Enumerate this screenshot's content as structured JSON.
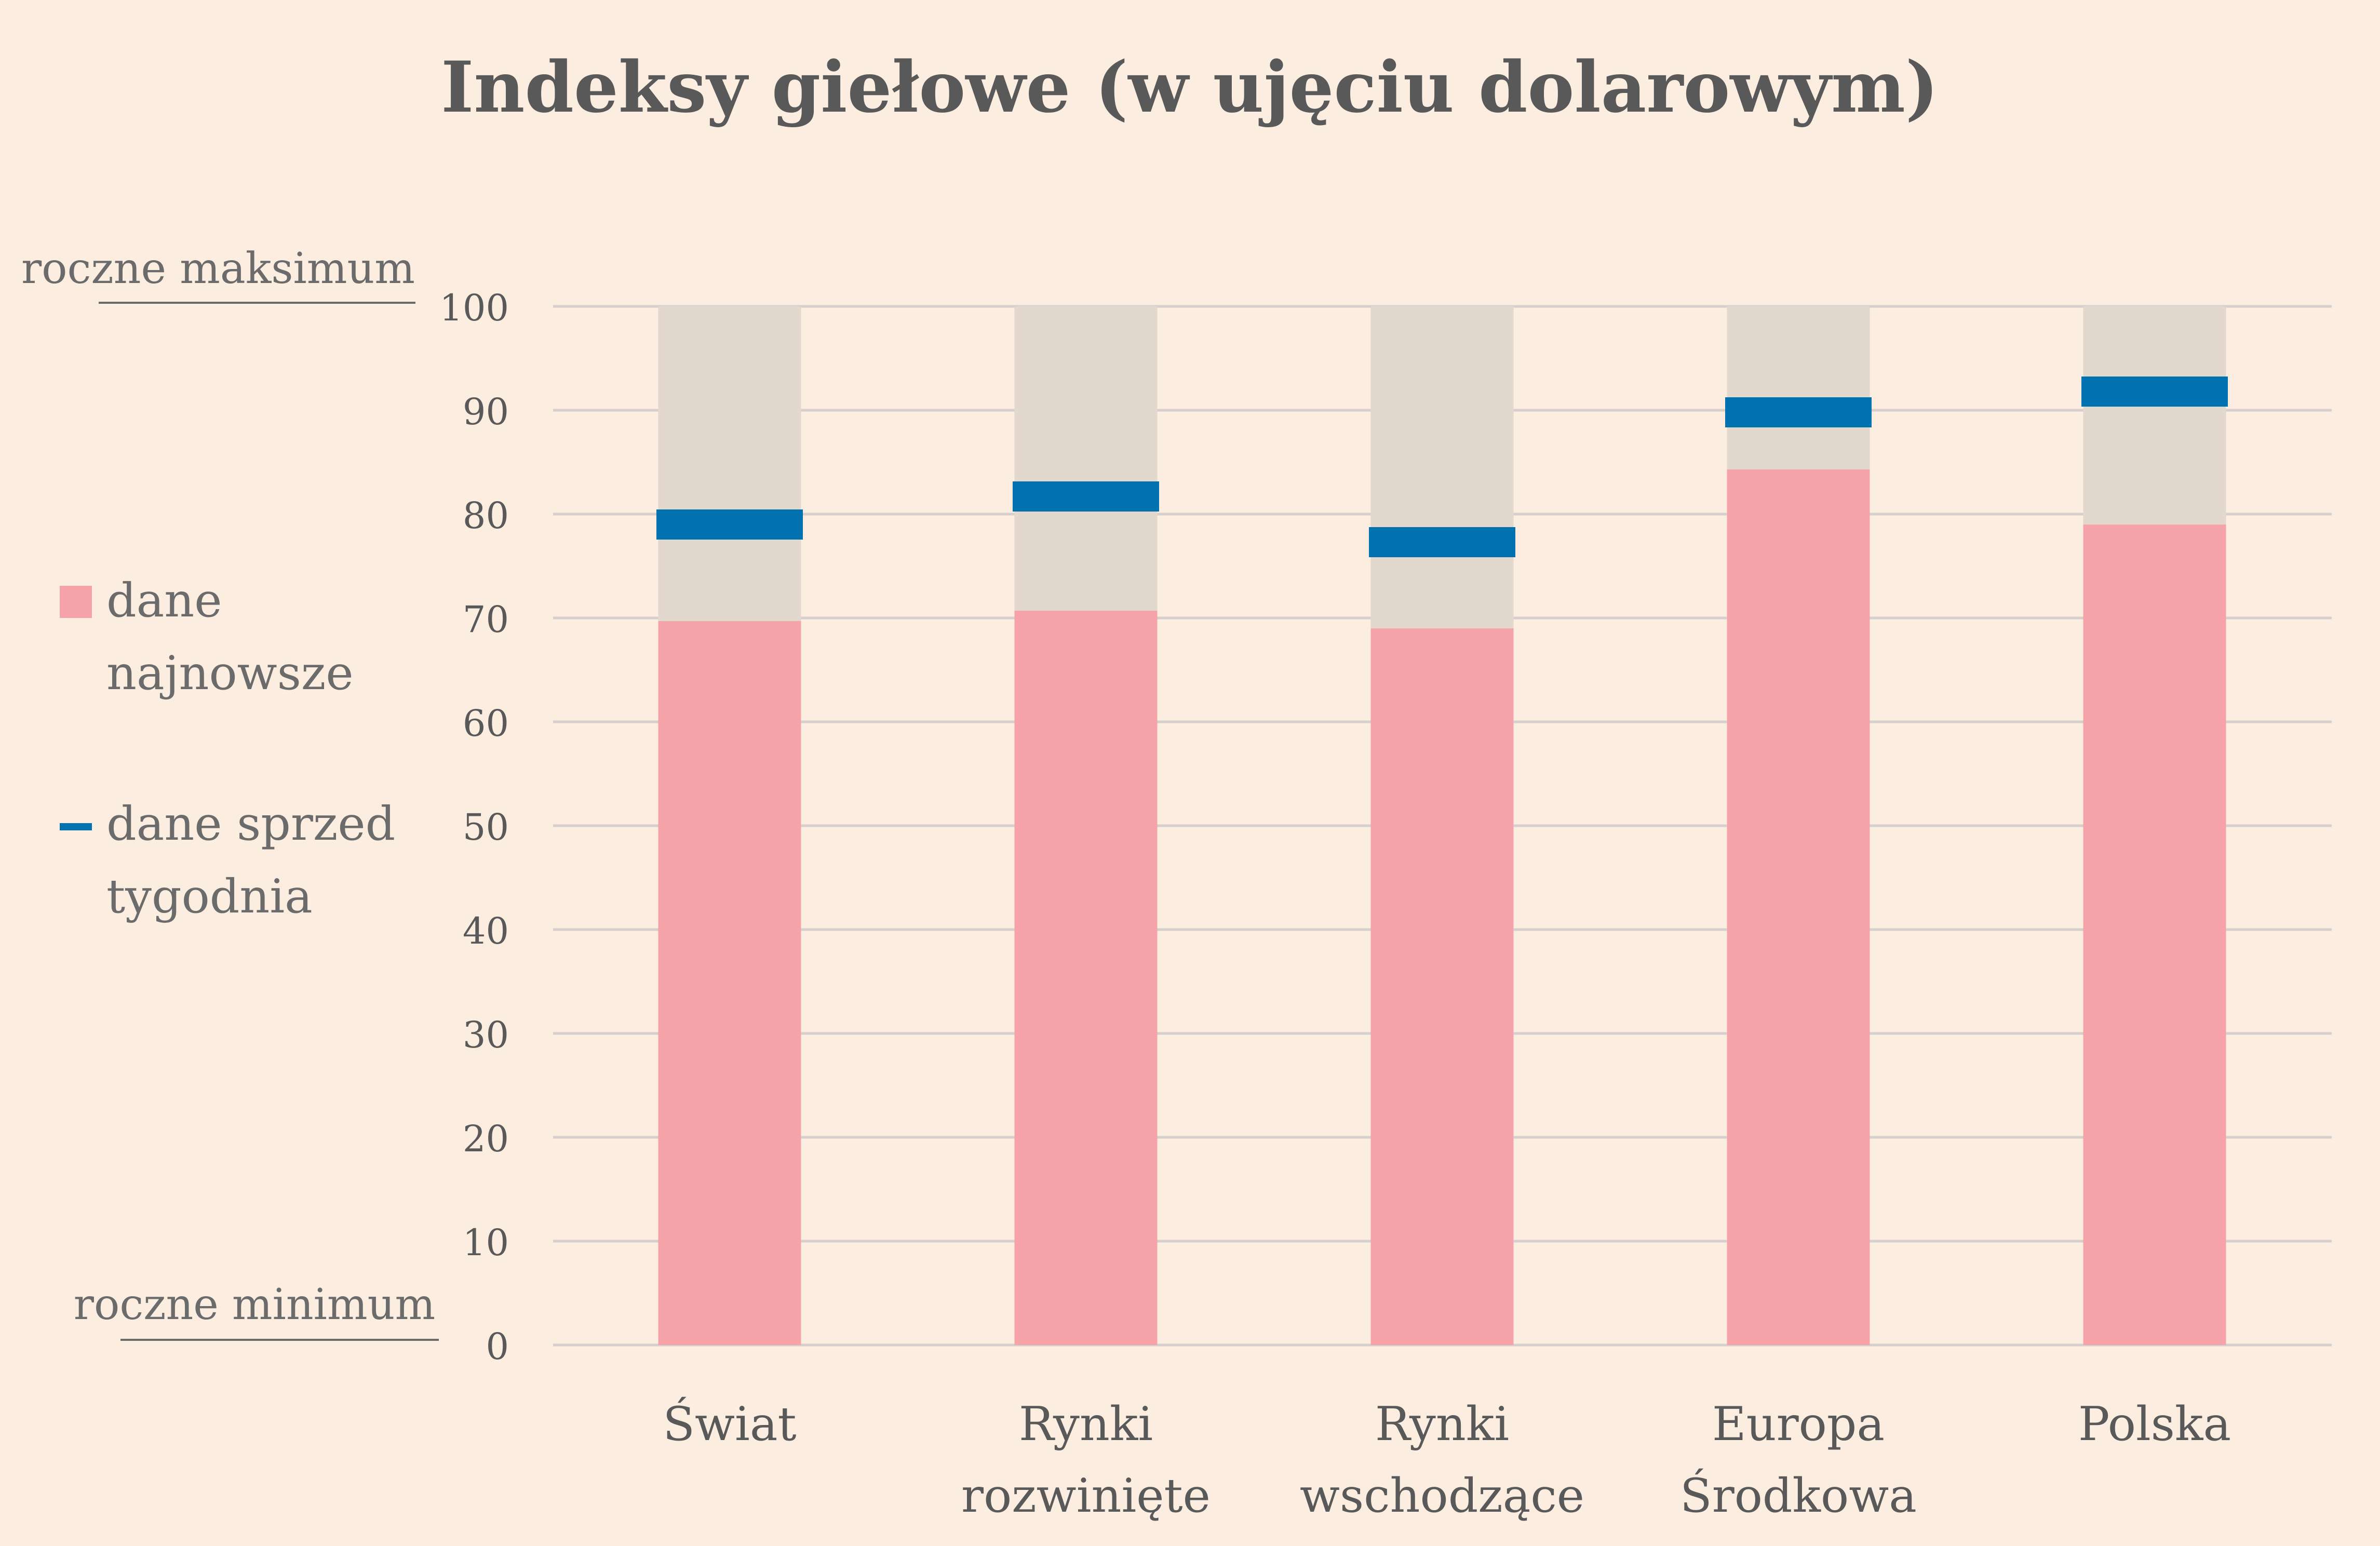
{
  "title": "Indeksy giełowe (w ujęciu dolarowym)",
  "side_labels": {
    "top": "roczne maksimum",
    "bottom": "roczne minimum"
  },
  "legend": {
    "latest": [
      "dane",
      "najnowsze"
    ],
    "week_ago": [
      "dane sprzed",
      "tygodnia"
    ]
  },
  "colors": {
    "background": "#fbede0",
    "range_band": "#e3d8cd",
    "latest_bar": "#f5a3a9",
    "week_ago_marker": "#0072b0",
    "grid": "#d5d0ce",
    "text": "#595959"
  },
  "chart_data": {
    "type": "bar",
    "categories": [
      [
        "Świat"
      ],
      [
        "Rynki",
        "rozwinięte"
      ],
      [
        "Rynki",
        "wschodzące"
      ],
      [
        "Europa",
        "Środkowa"
      ],
      [
        "Polska"
      ]
    ],
    "ylim": [
      0,
      100
    ],
    "yticks": [
      0,
      10,
      20,
      30,
      40,
      50,
      60,
      70,
      80,
      90,
      100
    ],
    "series": [
      {
        "name": "dane najnowsze",
        "type": "bar",
        "values": [
          69.7,
          70.7,
          69,
          84.3,
          79
        ]
      },
      {
        "name": "dane sprzed tygodnia",
        "type": "marker",
        "values": [
          79,
          81.7,
          77.3,
          89.8,
          91.8
        ]
      }
    ],
    "range_band": [
      0,
      100
    ],
    "grid": true,
    "legend_position": "left"
  }
}
